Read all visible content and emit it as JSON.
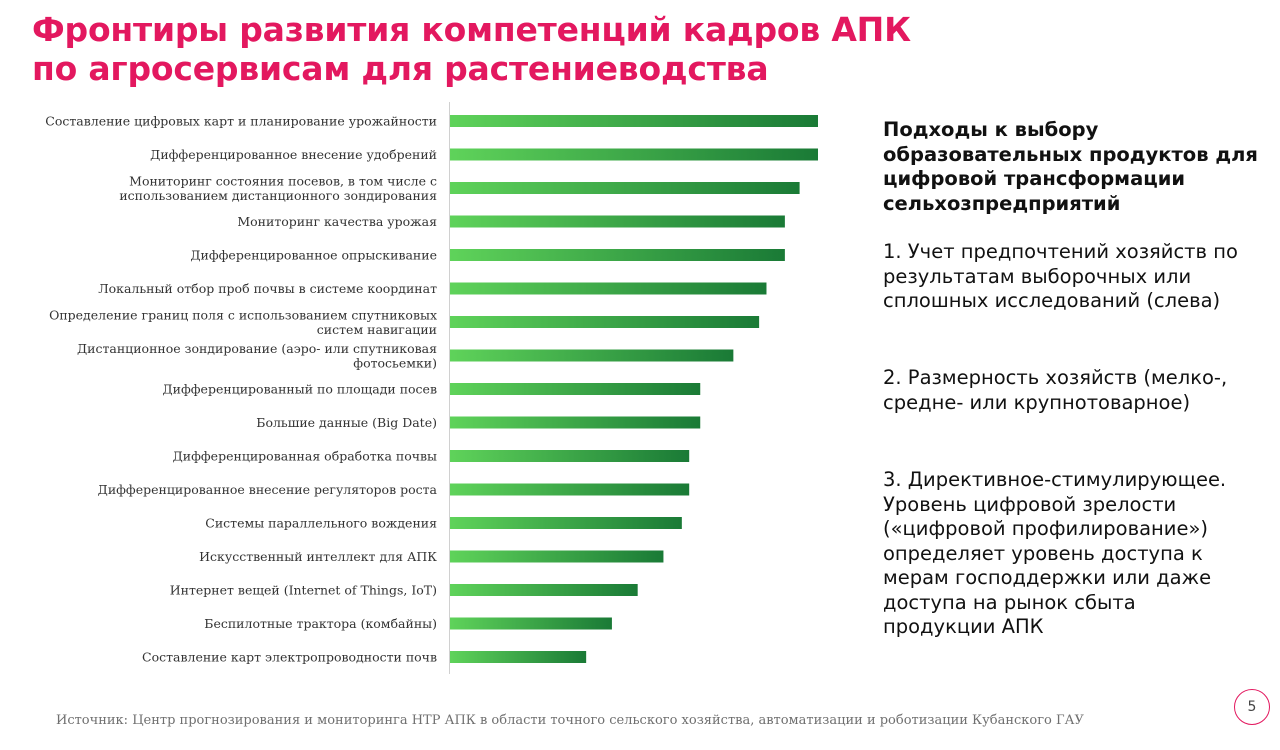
{
  "title": {
    "line1": "Фронтиры развития компетенций кадров АПК",
    "line2": "по агросервисам для растениеводства"
  },
  "colors": {
    "accent": "#e3185f",
    "bar_start": "#5fd35a",
    "bar_end": "#1a7a36"
  },
  "chart_data": {
    "type": "bar",
    "orientation": "horizontal",
    "categories": [
      [
        "Составление цифровых карт и планирование урожайности"
      ],
      [
        "Дифференцированное внесение удобрений"
      ],
      [
        "Мониторинг состояния посевов, в том числе с",
        "использованием дистанционного зондирования"
      ],
      [
        "Мониторинг качества урожая"
      ],
      [
        "Дифференцированное опрыскивание"
      ],
      [
        "Локальный отбор проб почвы в системе координат"
      ],
      [
        "Определение границ поля с использованием спутниковых",
        "систем навигации"
      ],
      [
        "Дистанционное зондирование (аэро- или спутниковая",
        "фотосьемки)"
      ],
      [
        "Дифференцированный по площади посев"
      ],
      [
        "Большие данные (Big Date)"
      ],
      [
        "Дифференцированная обработка почвы"
      ],
      [
        "Дифференцированное внесение регуляторов роста"
      ],
      [
        "Системы параллельного вождения"
      ],
      [
        "Искусственный интеллект для АПК"
      ],
      [
        "Интернет вещей (Internet of Things, IoT)"
      ],
      [
        "Беспилотные трактора (комбайны)"
      ],
      [
        "Составление карт электропроводности почв"
      ]
    ],
    "values": [
      100,
      100,
      95,
      91,
      91,
      86,
      84,
      77,
      68,
      68,
      65,
      65,
      63,
      58,
      51,
      44,
      37
    ],
    "xlim": [
      0,
      100
    ],
    "grid": false,
    "legend": "none",
    "axis_labels": false
  },
  "panel": {
    "heading": [
      "Подходы к выбору",
      "образовательных продуктов для",
      "цифровой трансформации",
      "сельхозпредприятий"
    ],
    "items": [
      [
        "1. Учет предпочтений хозяйств по",
        "результатам выборочных или",
        "сплошных исследований (слева)"
      ],
      [
        "2. Размерность хозяйств (мелко-,",
        "средне- или крупнотоварное)"
      ],
      [
        "3. Директивное-стимулирующее.",
        "Уровень цифровой зрелости",
        "(«цифровой профилирование»)",
        "определяет уровень доступа к",
        "мерам господдержки или даже",
        "доступа на рынок сбыта",
        "продукции АПК"
      ]
    ]
  },
  "source": "Источник: Центр прогнозирования и мониторинга НТР АПК в области точного сельского хозяйства, автоматизации и роботизации Кубанского ГАУ",
  "page_number": "5"
}
